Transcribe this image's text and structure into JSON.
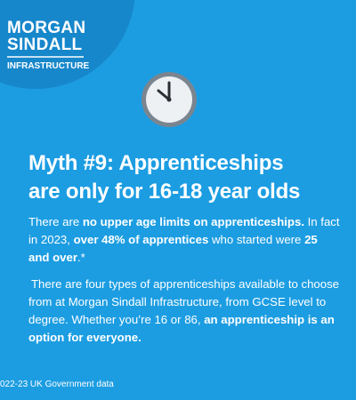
{
  "logo": {
    "line1": "MORGAN",
    "line2": "SINDALL",
    "line3": "INFRASTRUCTURE"
  },
  "title_lines": [
    "Myth #9: Apprenticeships",
    "are only for 16-18 year olds"
  ],
  "paragraphs": [
    [
      {
        "text": "There are ",
        "bold": false
      },
      {
        "text": "no upper age limits on apprenticeships.",
        "bold": true
      },
      {
        "text": " In fact in 2023, ",
        "bold": false
      },
      {
        "text": "over 48% of apprentices",
        "bold": true
      },
      {
        "text": " who started were ",
        "bold": false
      },
      {
        "text": "25 and over",
        "bold": true
      },
      {
        "text": ".*",
        "bold": false
      }
    ],
    [
      {
        "text": "There are four types of apprenticeships available to choose from at Morgan Sindall Infrastructure, from GCSE level to degree. Whether you’re 16 or 86, ",
        "bold": false
      },
      {
        "text": "an apprenticeship is an option for everyone.",
        "bold": true
      }
    ]
  ],
  "footnote": "022-23 UK Government data"
}
